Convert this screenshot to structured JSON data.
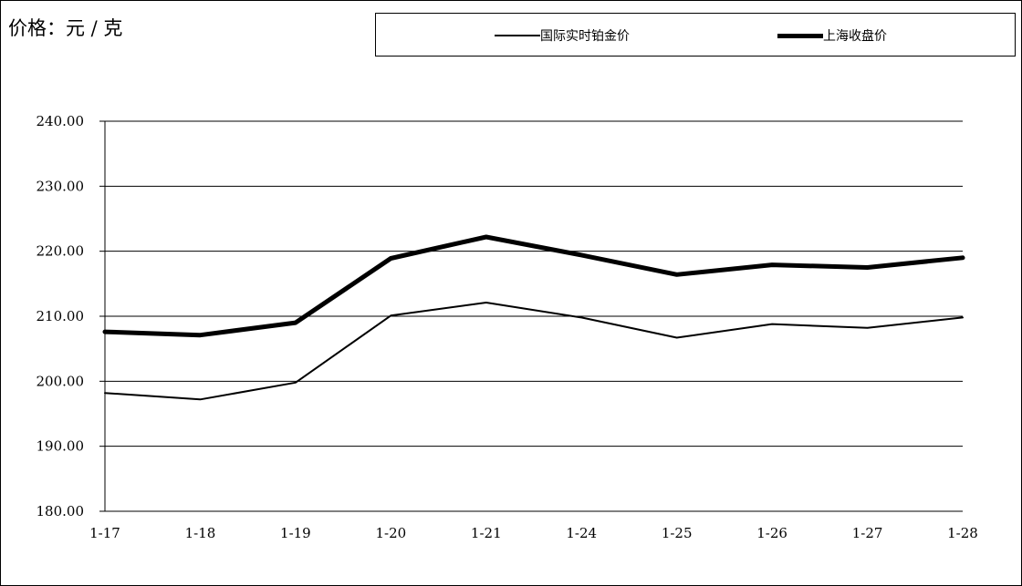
{
  "chart_data": {
    "type": "line",
    "title": "",
    "ylabel": "价格：元 / 克",
    "xlabel": "",
    "categories": [
      "1-17",
      "1-18",
      "1-19",
      "1-20",
      "1-21",
      "1-24",
      "1-25",
      "1-26",
      "1-27",
      "1-28"
    ],
    "ylim": [
      180,
      240
    ],
    "yticks": [
      "180.00",
      "190.00",
      "200.00",
      "210.00",
      "220.00",
      "230.00",
      "240.00"
    ],
    "grid": true,
    "legend_position": "top",
    "series": [
      {
        "name": "国际实时铂金价",
        "style": "thin",
        "color": "#000000",
        "values": [
          198.2,
          197.2,
          199.8,
          210.1,
          212.1,
          209.8,
          206.7,
          208.8,
          208.2,
          209.8
        ]
      },
      {
        "name": "上海收盘价",
        "style": "thick",
        "color": "#000000",
        "values": [
          207.6,
          207.1,
          209.0,
          218.9,
          222.2,
          219.4,
          216.4,
          217.9,
          217.5,
          219.0
        ]
      }
    ]
  }
}
